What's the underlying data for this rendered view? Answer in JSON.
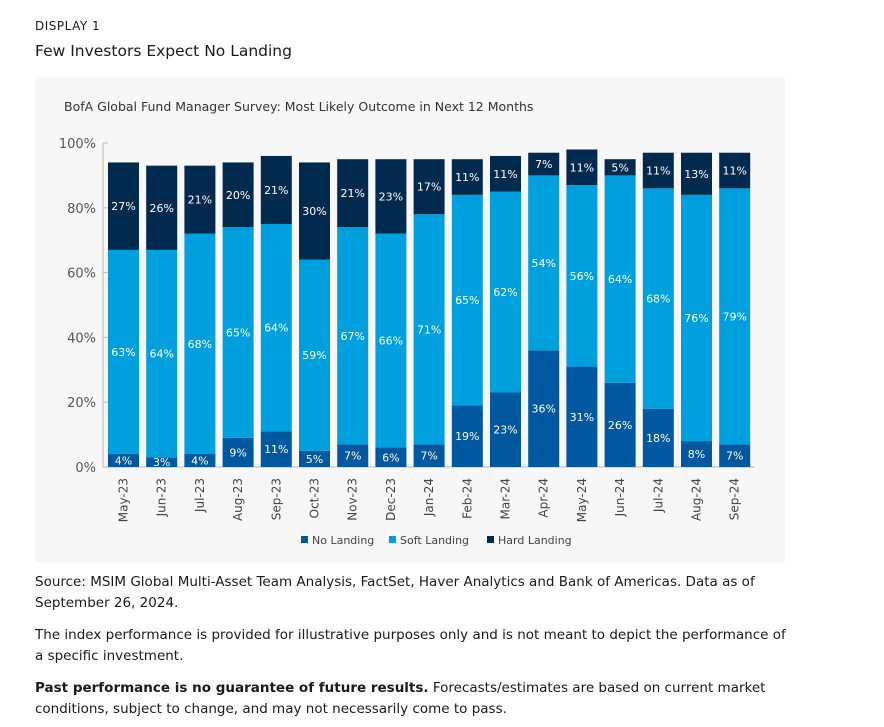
{
  "display_label": "DISPLAY 1",
  "title": "Few Investors Expect No Landing",
  "chart_data": {
    "type": "bar",
    "stacked": true,
    "title": "BofA Global Fund Manager Survey: Most Likely Outcome in Next 12 Months",
    "categories": [
      "May-23",
      "Jun-23",
      "Jul-23",
      "Aug-23",
      "Sep-23",
      "Oct-23",
      "Nov-23",
      "Dec-23",
      "Jan-24",
      "Feb-24",
      "Mar-24",
      "Apr-24",
      "May-24",
      "Jun-24",
      "Jul-24",
      "Aug-24",
      "Sep-24"
    ],
    "series": [
      {
        "name": "No Landing",
        "color": "#0058a0",
        "values": [
          4,
          3,
          4,
          9,
          11,
          5,
          7,
          6,
          7,
          19,
          23,
          36,
          31,
          26,
          18,
          8,
          7
        ]
      },
      {
        "name": "Soft Landing",
        "color": "#00a0df",
        "values": [
          63,
          64,
          68,
          65,
          64,
          59,
          67,
          66,
          71,
          65,
          62,
          54,
          56,
          64,
          68,
          76,
          79
        ]
      },
      {
        "name": "Hard Landing",
        "color": "#022a4e",
        "values": [
          27,
          26,
          21,
          20,
          21,
          30,
          21,
          23,
          17,
          11,
          11,
          7,
          11,
          5,
          11,
          13,
          11
        ]
      }
    ],
    "ylim": [
      0,
      100
    ],
    "yticks": [
      "0%",
      "20%",
      "40%",
      "60%",
      "80%",
      "100%"
    ],
    "legend": "bottom",
    "grid": false
  },
  "notes": {
    "source": "Source: MSIM Global Multi-Asset Team Analysis, FactSet, Haver Analytics and Bank of Americas. Data as of September 26, 2024.",
    "index": "The index performance is provided for illustrative purposes only and is not meant to depict the performance of a specific investment.",
    "past_bold": "Past performance is no guarantee of future results.",
    "past_rest": " Forecasts/estimates are based on current market conditions, subject to change, and may not necessarily come to pass."
  }
}
